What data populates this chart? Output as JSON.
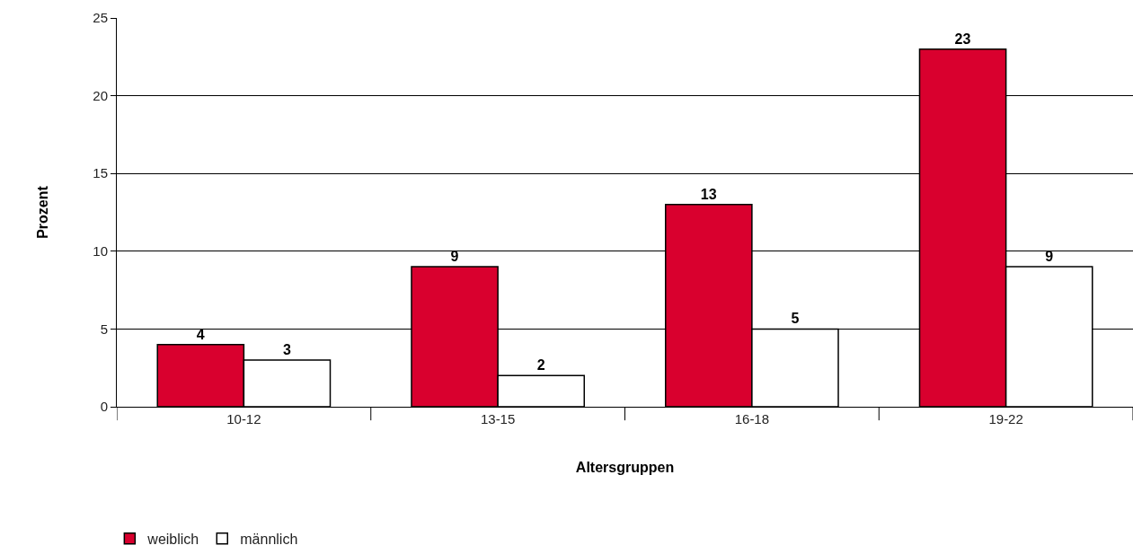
{
  "chart_data": {
    "type": "bar",
    "xlabel": "Altersgruppen",
    "ylabel": "Prozent",
    "categories": [
      "10-12",
      "13-15",
      "16-18",
      "19-22"
    ],
    "series": [
      {
        "name": "weiblich",
        "color": "#d9002e",
        "values": [
          4,
          9,
          13,
          23
        ]
      },
      {
        "name": "männlich",
        "color": "#ffffff",
        "values": [
          3,
          2,
          5,
          9
        ]
      }
    ],
    "ylim": [
      0,
      25
    ],
    "yticks": [
      0,
      5,
      10,
      15,
      20,
      25
    ],
    "grid": "y",
    "legend": "bottom left",
    "data_labels": true
  }
}
